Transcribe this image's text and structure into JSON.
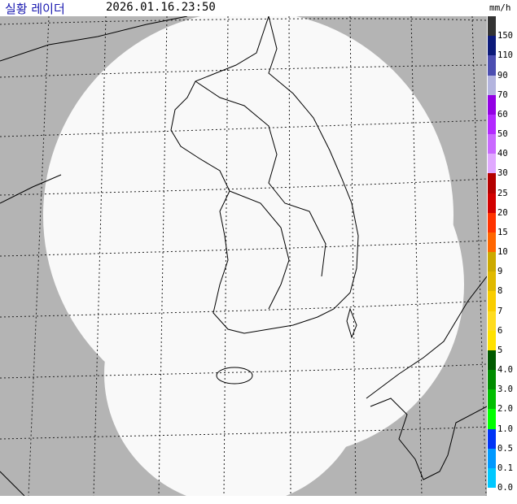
{
  "header": {
    "title": "실황 레이더",
    "time": "2026.01.16.23:50",
    "unit": "mm/h"
  },
  "legend": [
    {
      "label": "150",
      "color": "#333333"
    },
    {
      "label": "110",
      "color": "#0c1a7a"
    },
    {
      "label": "90",
      "color": "#4c4eb1"
    },
    {
      "label": "70",
      "color": "#b3b4de"
    },
    {
      "label": "60",
      "color": "#9300e4"
    },
    {
      "label": "50",
      "color": "#b329ff"
    },
    {
      "label": "40",
      "color": "#c969ff"
    },
    {
      "label": "30",
      "color": "#e0a9ff"
    },
    {
      "label": "25",
      "color": "#b40000"
    },
    {
      "label": "20",
      "color": "#d20000"
    },
    {
      "label": "15",
      "color": "#ff3300"
    },
    {
      "label": "10",
      "color": "#ff6600"
    },
    {
      "label": "9",
      "color": "#ccaa00"
    },
    {
      "label": "8",
      "color": "#e0b900"
    },
    {
      "label": "7",
      "color": "#f9cd00"
    },
    {
      "label": "6",
      "color": "#ffdc1f"
    },
    {
      "label": "5",
      "color": "#ffe100"
    },
    {
      "label": "4.0",
      "color": "#005a00"
    },
    {
      "label": "3.0",
      "color": "#008c00"
    },
    {
      "label": "2.0",
      "color": "#00be00"
    },
    {
      "label": "1.0",
      "color": "#00ff00"
    },
    {
      "label": "0.5",
      "color": "#0033f5"
    },
    {
      "label": "0.1",
      "color": "#0099ff"
    },
    {
      "label": "0.0",
      "color": "#00c8ff"
    }
  ]
}
